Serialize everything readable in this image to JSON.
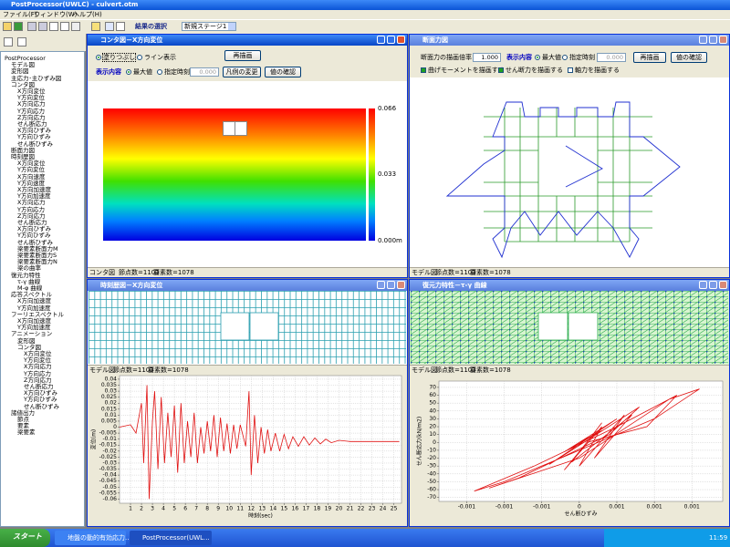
{
  "app": {
    "title": "PostProcessor(UWLC) - culvert.otm",
    "menu": [
      "ファイル(F)",
      "ウィンドウ(W)",
      "ヘルプ(H)"
    ],
    "result_label": "結果の選択",
    "result_select": "新規ステージ1"
  },
  "tree": [
    {
      "label": "PostProcessor",
      "children": [
        {
          "label": "モデル図"
        },
        {
          "label": "変形図"
        },
        {
          "label": "主応力･主ひずみ図"
        },
        {
          "label": "コンタ図",
          "children": [
            {
              "label": "X方向変位"
            },
            {
              "label": "Y方向変位"
            },
            {
              "label": "X方向応力"
            },
            {
              "label": "Y方向応力"
            },
            {
              "label": "Z方向応力"
            },
            {
              "label": "せん断応力"
            },
            {
              "label": "X方向ひずみ"
            },
            {
              "label": "Y方向ひずみ"
            },
            {
              "label": "せん断ひずみ"
            }
          ]
        },
        {
          "label": "断面力図"
        },
        {
          "label": "時刻歴図",
          "children": [
            {
              "label": "X方向変位"
            },
            {
              "label": "Y方向変位"
            },
            {
              "label": "X方向速度"
            },
            {
              "label": "Y方向速度"
            },
            {
              "label": "X方向加速度"
            },
            {
              "label": "Y方向加速度"
            },
            {
              "label": "X方向応力"
            },
            {
              "label": "Y方向応力"
            },
            {
              "label": "Z方向応力"
            },
            {
              "label": "せん断応力"
            },
            {
              "label": "X方向ひずみ"
            },
            {
              "label": "Y方向ひずみ"
            },
            {
              "label": "せん断ひずみ"
            },
            {
              "label": "梁要素断面力M"
            },
            {
              "label": "梁要素断面力S"
            },
            {
              "label": "梁要素断面力N"
            },
            {
              "label": "梁の曲率"
            }
          ]
        },
        {
          "label": "復元力特性",
          "children": [
            {
              "label": "τ-γ 曲線"
            },
            {
              "label": "M-φ 曲線"
            }
          ]
        },
        {
          "label": "応答スペクトル",
          "children": [
            {
              "label": "X方向加速度"
            },
            {
              "label": "Y方向加速度"
            }
          ]
        },
        {
          "label": "フーリエスペクトル",
          "children": [
            {
              "label": "X方向加速度"
            },
            {
              "label": "Y方向加速度"
            }
          ]
        },
        {
          "label": "アニメーション",
          "children": [
            {
              "label": "変形図"
            },
            {
              "label": "コンタ図",
              "children": [
                {
                  "label": "X方向変位"
                },
                {
                  "label": "Y方向変位"
                },
                {
                  "label": "X方向応力"
                },
                {
                  "label": "Y方向応力"
                },
                {
                  "label": "Z方向応力"
                },
                {
                  "label": "せん断応力"
                },
                {
                  "label": "X方向ひずみ"
                },
                {
                  "label": "Y方向ひずみ"
                },
                {
                  "label": "せん断ひずみ"
                }
              ]
            }
          ]
        },
        {
          "label": "諸値出力",
          "children": [
            {
              "label": "節点"
            },
            {
              "label": "要素"
            },
            {
              "label": "梁要素"
            }
          ]
        }
      ]
    }
  ],
  "contour_window": {
    "title": "コンタ図－X方向変位",
    "radio_fill": "塗りつぶし",
    "radio_line": "ライン表示",
    "redraw": "再描画",
    "display_label": "表示内容",
    "max": "最大値",
    "time": "指定時刻",
    "time_value": "0.000",
    "legend_button": "凡例の変更",
    "check_button": "値の確認",
    "legend": [
      "0.066",
      "0.033",
      "0.000m"
    ],
    "status": [
      "コンタ図",
      "節点数=1103",
      "要素数=1078"
    ]
  },
  "section_window": {
    "title": "断面力図",
    "scale_label": "断面力の描画倍率",
    "scale_value": "1.000",
    "display_label": "表示内容",
    "max": "最大値",
    "time": "指定時刻",
    "time_value": "0.000",
    "redraw": "再描画",
    "check_button": "値の確認",
    "checks": [
      "曲げモーメントを描画する",
      "せん断力を描画する",
      "軸力を描画する"
    ],
    "status": [
      "モデル図",
      "節点数=1103",
      "要素数=1078"
    ]
  },
  "history_window": {
    "title": "時刻歴図－X方向変位",
    "status": [
      "モデル図",
      "節点数=1103",
      "要素数=1078"
    ]
  },
  "hysteresis_window": {
    "title": "復元力特性－τ-γ 曲線",
    "status": [
      "モデル図",
      "節点数=1103",
      "要素数=1078"
    ]
  },
  "chart_data": [
    {
      "type": "line",
      "xlabel": "時刻(sec)",
      "ylabel": "変位(m)",
      "x": [
        0,
        1,
        1.5,
        2,
        2.2,
        2.5,
        2.7,
        3,
        3.2,
        3.5,
        3.8,
        4.1,
        4.4,
        4.7,
        5,
        5.3,
        5.6,
        5.9,
        6.2,
        6.5,
        6.8,
        7.1,
        7.4,
        7.7,
        8,
        8.3,
        8.6,
        8.9,
        9.2,
        9.5,
        9.8,
        10.1,
        10.4,
        10.7,
        11,
        11.5,
        11.8,
        12,
        12.3,
        12.6,
        12.9,
        13.2,
        13.5,
        13.8,
        14.2,
        14.6,
        15,
        15.4,
        15.8,
        16.3,
        16.8,
        17.3,
        17.8,
        18.3,
        18.8,
        19.3,
        20,
        21,
        22,
        25.5
      ],
      "series": [
        {
          "color": "#e01010",
          "values": [
            0,
            0.002,
            -0.005,
            0.02,
            -0.03,
            0.035,
            -0.06,
            0.005,
            0.03,
            -0.035,
            0.025,
            -0.03,
            0.012,
            -0.025,
            0.018,
            -0.038,
            0.02,
            -0.03,
            0.005,
            -0.025,
            0.012,
            -0.03,
            0,
            -0.022,
            0.005,
            -0.02,
            0.01,
            -0.025,
            0.008,
            -0.02,
            0.003,
            -0.022,
            0.002,
            -0.018,
            0.002,
            -0.016,
            0.03,
            -0.04,
            0.01,
            -0.03,
            0,
            -0.022,
            -0.002,
            -0.02,
            -0.005,
            -0.02,
            -0.006,
            -0.018,
            -0.008,
            -0.016,
            -0.008,
            -0.015,
            -0.009,
            -0.014,
            -0.01,
            -0.013,
            -0.011,
            -0.012,
            -0.012,
            -0.012
          ]
        }
      ],
      "xlim": [
        0,
        25.7
      ],
      "xticks": [
        1,
        2,
        3,
        4,
        5,
        6,
        7,
        8,
        9,
        10,
        11,
        12,
        13,
        14,
        15,
        16,
        17,
        18,
        19,
        20,
        21,
        22,
        23,
        24,
        25
      ],
      "ylim": [
        -0.0635,
        0.043
      ],
      "yticks": [
        0.04,
        0.035,
        0.03,
        0.025,
        0.02,
        0.015,
        0.01,
        0.005,
        0,
        -0.005,
        -0.01,
        -0.015,
        -0.02,
        -0.025,
        -0.03,
        -0.035,
        -0.04,
        -0.045,
        -0.05,
        -0.055,
        -0.06
      ],
      "grid": true
    },
    {
      "type": "line",
      "xlabel": "せん断ひずみ",
      "ylabel": "せん断応力(kN/m2)",
      "x": [
        0,
        0.0003,
        -0.0002,
        0.0005,
        -0.0004,
        0.0008,
        0.0004,
        -0.0008,
        -0.0012,
        0,
        0.0012,
        0.0016,
        0.001,
        0,
        -0.001,
        -0.0014,
        -0.0006,
        0.0005,
        0.0013,
        0.0009,
        0.0001,
        0.0003,
        -0.0001,
        0.0007,
        0.0002,
        0.0006,
        0,
        0.0003,
        -0.0002,
        0.0001
      ],
      "series": [
        {
          "color": "#e01010",
          "values": [
            0,
            15,
            -12,
            30,
            -28,
            45,
            10,
            -45,
            -58,
            -20,
            55,
            68,
            30,
            -10,
            -50,
            -62,
            -30,
            20,
            60,
            20,
            0,
            25,
            -25,
            35,
            -20,
            35,
            -30,
            20,
            -35,
            0
          ]
        }
      ],
      "xlim": [
        -0.00187,
        0.00191
      ],
      "xticks": [
        {
          "value": -0.0015,
          "label": "-0.001"
        },
        {
          "value": -0.001,
          "label": "-0.001"
        },
        {
          "value": -0.0005,
          "label": "-0.001"
        },
        0,
        {
          "value": 0.0005,
          "label": "0.001"
        },
        {
          "value": 0.001,
          "label": "0.001"
        },
        {
          "value": 0.0015,
          "label": "0.001"
        }
      ],
      "ylim": [
        -75,
        78
      ],
      "yticks": [
        70,
        60,
        50,
        40,
        30,
        20,
        10,
        0,
        -10,
        -20,
        -30,
        -40,
        -50,
        -60,
        -70
      ],
      "grid": true
    }
  ],
  "taskbar": {
    "start": "スタート",
    "tasks": [
      "地盤の動的有効応力...",
      "PostProcessor(UWL..."
    ],
    "clock": "11:59"
  }
}
